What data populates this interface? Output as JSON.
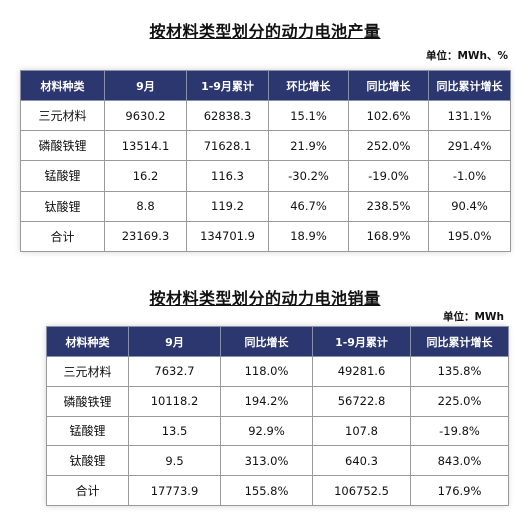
{
  "production": {
    "title": "按材料类型划分的动力电池产量",
    "unit": "单位：MWh、%",
    "headers": [
      "材料种类",
      "9月",
      "1-9月累计",
      "环比增长",
      "同比增长",
      "同比累计增长"
    ],
    "rows": [
      [
        "三元材料",
        "9630.2",
        "62838.3",
        "15.1%",
        "102.6%",
        "131.1%"
      ],
      [
        "磷酸铁锂",
        "13514.1",
        "71628.1",
        "21.9%",
        "252.0%",
        "291.4%"
      ],
      [
        "锰酸锂",
        "16.2",
        "116.3",
        "-30.2%",
        "-19.0%",
        "-1.0%"
      ],
      [
        "钛酸锂",
        "8.8",
        "119.2",
        "46.7%",
        "238.5%",
        "90.4%"
      ],
      [
        "合计",
        "23169.3",
        "134701.9",
        "18.9%",
        "168.9%",
        "195.0%"
      ]
    ]
  },
  "sales": {
    "title": "按材料类型划分的动力电池销量",
    "unit": "单位：MWh",
    "headers": [
      "材料种类",
      "9月",
      "同比增长",
      "1-9月累计",
      "同比累计增长"
    ],
    "rows": [
      [
        "三元材料",
        "7632.7",
        "118.0%",
        "49281.6",
        "135.8%"
      ],
      [
        "磷酸铁锂",
        "10118.2",
        "194.2%",
        "56722.8",
        "225.0%"
      ],
      [
        "锰酸锂",
        "13.5",
        "92.9%",
        "107.8",
        "-19.8%"
      ],
      [
        "钛酸锂",
        "9.5",
        "313.0%",
        "640.3",
        "843.0%"
      ],
      [
        "合计",
        "17773.9",
        "155.8%",
        "106752.5",
        "176.9%"
      ]
    ]
  },
  "colors": {
    "header_bg": "#2c3770",
    "header_text": "#ffffff"
  }
}
